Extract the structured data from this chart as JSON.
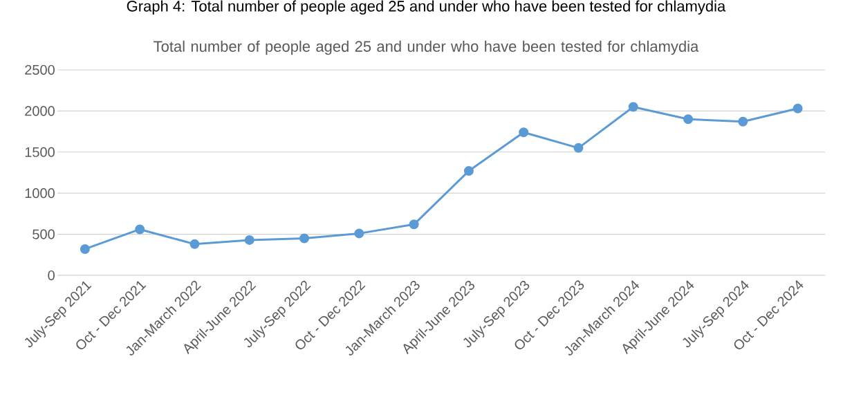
{
  "chart_data": {
    "type": "line",
    "title": "Total number of people aged 25 and under who have been tested for chlamydia",
    "annotations": [
      "Graph 4: Total number of people aged 25 and under who have been tested for chlamydia"
    ],
    "categories": [
      "July-Sep 2021",
      "Oct - Dec 2021",
      "Jan-March 2022",
      "April-June 2022",
      "July-Sep 2022",
      "Oct - Dec 2022",
      "Jan-March 2023",
      "April-June 2023",
      "July-Sep 2023",
      "Oct - Dec 2023",
      "Jan-March 2024",
      "April-June 2024",
      "July-Sep 2024",
      "Oct - Dec 2024"
    ],
    "series": [
      {
        "color": "#5b9bd5",
        "values": [
          320,
          560,
          380,
          430,
          450,
          510,
          620,
          1270,
          1740,
          1550,
          2050,
          1900,
          1870,
          2030
        ]
      }
    ],
    "ylim": [
      0,
      2500
    ],
    "yticks": [
      0,
      500,
      1000,
      1500,
      2000,
      2500
    ],
    "grid": "y",
    "marker": "circle",
    "line_style": "solid"
  }
}
